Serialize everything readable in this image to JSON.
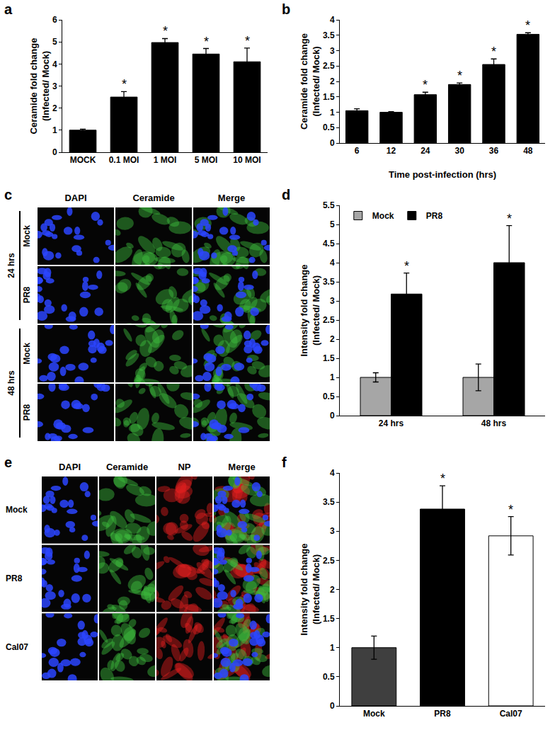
{
  "chart_data": [
    {
      "panel_label": "a",
      "type": "bar",
      "y_label": [
        "Ceramide fold change",
        "(Infected/ Mock)"
      ],
      "categories": [
        "MOCK",
        "0.1 MOI",
        "1 MOI",
        "5 MOI",
        "10 MOI"
      ],
      "values": [
        1,
        2.5,
        4.97,
        4.45,
        4.1
      ],
      "errors": [
        0.05,
        0.25,
        0.18,
        0.25,
        0.62
      ],
      "color": "#000000",
      "ylim": [
        0,
        6
      ],
      "yticks": [
        0,
        1,
        2,
        3,
        4,
        5,
        6
      ],
      "grid": false,
      "annotations": [
        {
          "category": "0.1 MOI",
          "text": "*"
        },
        {
          "category": "1 MOI",
          "text": "*"
        },
        {
          "category": "5 MOI",
          "text": "*"
        },
        {
          "category": "10 MOI",
          "text": "*"
        }
      ]
    },
    {
      "panel_label": "b",
      "type": "bar",
      "y_label": [
        "Ceramide fold change",
        "(Infected/ Mock)"
      ],
      "x_label": "Time post-infection (hrs)",
      "categories": [
        "6",
        "12",
        "24",
        "30",
        "36",
        "48"
      ],
      "values": [
        1.05,
        1.0,
        1.57,
        1.9,
        2.55,
        3.53
      ],
      "errors": [
        0.06,
        0.02,
        0.08,
        0.05,
        0.18,
        0.05
      ],
      "color": "#000000",
      "ylim": [
        0,
        4
      ],
      "yticks": [
        0,
        0.5,
        1,
        1.5,
        2,
        2.5,
        3,
        3.5,
        4
      ],
      "grid": false,
      "annotations": [
        {
          "category": "24",
          "text": "*"
        },
        {
          "category": "30",
          "text": "*"
        },
        {
          "category": "36",
          "text": "*"
        },
        {
          "category": "48",
          "text": "*"
        }
      ]
    },
    {
      "panel_label": "d",
      "type": "bar",
      "y_label": [
        "Intensity fold change",
        "(Infected/ Mock)"
      ],
      "categories": [
        "24 hrs",
        "48 hrs"
      ],
      "series": [
        {
          "name": "Mock",
          "color": "#a6a6a6",
          "values": [
            1,
            1
          ],
          "errors": [
            0.12,
            0.35
          ]
        },
        {
          "name": "PR8",
          "color": "#000000",
          "values": [
            3.18,
            4.0
          ],
          "errors": [
            0.55,
            0.97
          ]
        }
      ],
      "ylim": [
        0,
        5.5
      ],
      "yticks": [
        0,
        0.5,
        1,
        1.5,
        2,
        2.5,
        3,
        3.5,
        4,
        4.5,
        5,
        5.5
      ],
      "grid": false,
      "legend": "upper left",
      "annotations": [
        {
          "series": "PR8",
          "category": "24 hrs",
          "text": "*"
        },
        {
          "series": "PR8",
          "category": "48 hrs",
          "text": "*"
        }
      ]
    },
    {
      "panel_label": "f",
      "type": "bar",
      "y_label": [
        "Intensity fold change",
        "(Infected/ Mock)"
      ],
      "categories": [
        "Mock",
        "PR8",
        "Cal07"
      ],
      "values": [
        1,
        3.38,
        2.92
      ],
      "errors": [
        0.2,
        0.4,
        0.33
      ],
      "colors": [
        "#3f3f3f",
        "#000000",
        "#ffffff"
      ],
      "ylim": [
        0,
        4
      ],
      "yticks": [
        0,
        0.5,
        1,
        1.5,
        2,
        2.5,
        3,
        3.5,
        4
      ],
      "grid": false,
      "annotations": [
        {
          "category": "PR8",
          "text": "*"
        },
        {
          "category": "Cal07",
          "text": "*"
        }
      ]
    }
  ],
  "image_panels": [
    {
      "panel_label": "c",
      "columns": [
        "DAPI",
        "Ceramide",
        "Merge"
      ],
      "column_colors": [
        "#2b45ff",
        "#3fbf3f",
        null
      ],
      "row_groups": [
        {
          "label": "24 hrs",
          "rows": [
            "Mock",
            "PR8"
          ]
        },
        {
          "label": "48 hrs",
          "rows": [
            "Mock",
            "PR8"
          ]
        }
      ]
    },
    {
      "panel_label": "e",
      "columns": [
        "DAPI",
        "Ceramide",
        "NP",
        "Merge"
      ],
      "column_colors": [
        "#2b45ff",
        "#3fbf3f",
        "#e02020",
        null
      ],
      "rows": [
        "Mock",
        "PR8",
        "Cal07"
      ]
    }
  ]
}
